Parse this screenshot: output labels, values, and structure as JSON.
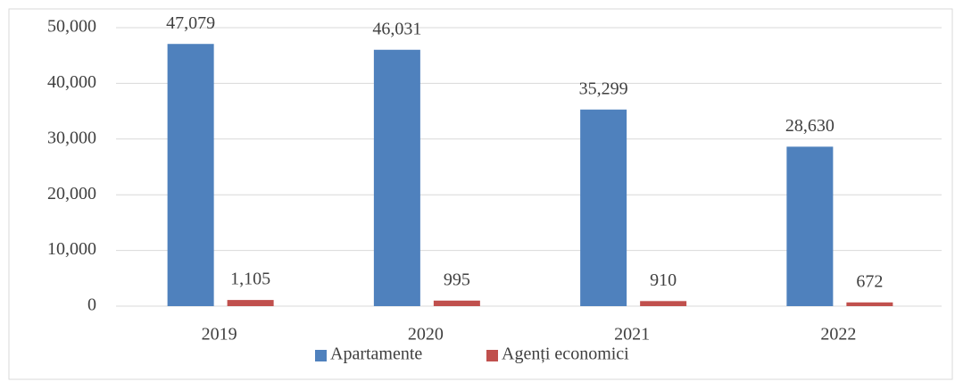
{
  "chart_data": {
    "type": "bar",
    "categories": [
      "2019",
      "2020",
      "2021",
      "2022"
    ],
    "series": [
      {
        "name": "Apartamente",
        "color": "#4f81bd",
        "values": [
          47079,
          46031,
          35299,
          28630
        ],
        "value_labels": [
          "47,079",
          "46,031",
          "35,299",
          "28,630"
        ]
      },
      {
        "name": "Agenți economici",
        "color": "#c0504d",
        "values": [
          1105,
          995,
          910,
          672
        ],
        "value_labels": [
          "1,105",
          "995",
          "910",
          "672"
        ]
      }
    ],
    "ylim": [
      0,
      50000
    ],
    "yticks": [
      0,
      {
        "value": 10000,
        "label": "10,000"
      },
      {
        "value": 20000,
        "label": "20,000"
      },
      {
        "value": 30000,
        "label": "30,000"
      },
      {
        "value": 40000,
        "label": "40,000"
      },
      {
        "value": 50000,
        "label": "50,000"
      }
    ],
    "grid": true,
    "legend": "bottom"
  }
}
